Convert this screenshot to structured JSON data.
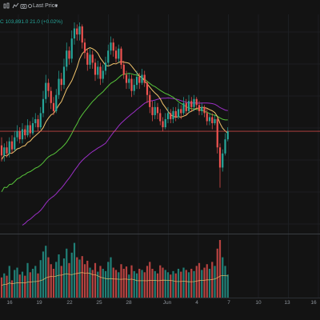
{
  "toolbar": {
    "icons": [
      "chart-type-icon",
      "indicators-icon",
      "camera-icon",
      "settings-icon"
    ],
    "price_source": "Last Price",
    "dropdown_icon": "chevron-down-icon"
  },
  "legend": {
    "ohlc_text": "C 103,891.0  21.0 (+0.02%)",
    "color": "#26a69a"
  },
  "colors": {
    "up": "#26a69a",
    "down": "#ef5350",
    "ma_fast": "#f2c46d",
    "ma_mid": "#57c33a",
    "ma_slow": "#9b2fc6",
    "price_line": "#ef5350",
    "volume_ma": "#f2c46d"
  },
  "chart_data": {
    "type": "candlestick",
    "x_ticks": [
      "16",
      "19",
      "22",
      "25",
      "28",
      "Jun",
      "4",
      "7",
      "10",
      "13",
      "16"
    ],
    "last_price_line": true,
    "candles": [
      [
        0.39,
        0.34,
        0.43,
        0.31
      ],
      [
        0.34,
        0.38,
        0.4,
        0.31
      ],
      [
        0.38,
        0.35,
        0.41,
        0.33
      ],
      [
        0.35,
        0.41,
        0.43,
        0.33
      ],
      [
        0.41,
        0.37,
        0.44,
        0.35
      ],
      [
        0.37,
        0.43,
        0.46,
        0.36
      ],
      [
        0.43,
        0.46,
        0.49,
        0.41
      ],
      [
        0.46,
        0.42,
        0.48,
        0.4
      ],
      [
        0.42,
        0.47,
        0.5,
        0.4
      ],
      [
        0.47,
        0.44,
        0.49,
        0.42
      ],
      [
        0.44,
        0.49,
        0.52,
        0.43
      ],
      [
        0.49,
        0.45,
        0.51,
        0.43
      ],
      [
        0.45,
        0.5,
        0.53,
        0.44
      ],
      [
        0.5,
        0.52,
        0.55,
        0.48
      ],
      [
        0.52,
        0.48,
        0.54,
        0.46
      ],
      [
        0.48,
        0.55,
        0.58,
        0.47
      ],
      [
        0.55,
        0.62,
        0.66,
        0.53
      ],
      [
        0.62,
        0.7,
        0.74,
        0.6
      ],
      [
        0.7,
        0.66,
        0.72,
        0.63
      ],
      [
        0.66,
        0.6,
        0.68,
        0.57
      ],
      [
        0.6,
        0.56,
        0.63,
        0.54
      ],
      [
        0.56,
        0.64,
        0.67,
        0.55
      ],
      [
        0.64,
        0.72,
        0.76,
        0.62
      ],
      [
        0.72,
        0.69,
        0.75,
        0.66
      ],
      [
        0.69,
        0.78,
        0.82,
        0.67
      ],
      [
        0.78,
        0.86,
        0.9,
        0.76
      ],
      [
        0.86,
        0.82,
        0.88,
        0.79
      ],
      [
        0.82,
        0.92,
        0.96,
        0.8
      ],
      [
        0.92,
        0.97,
        1.0,
        0.89
      ],
      [
        0.97,
        0.94,
        0.99,
        0.91
      ],
      [
        0.94,
        0.98,
        1.0,
        0.91
      ],
      [
        0.98,
        0.9,
        0.99,
        0.87
      ],
      [
        0.9,
        0.85,
        0.92,
        0.82
      ],
      [
        0.85,
        0.79,
        0.87,
        0.76
      ],
      [
        0.79,
        0.84,
        0.87,
        0.77
      ],
      [
        0.84,
        0.8,
        0.86,
        0.77
      ],
      [
        0.8,
        0.74,
        0.82,
        0.71
      ],
      [
        0.74,
        0.78,
        0.81,
        0.72
      ],
      [
        0.78,
        0.72,
        0.8,
        0.69
      ],
      [
        0.72,
        0.76,
        0.79,
        0.7
      ],
      [
        0.76,
        0.8,
        0.83,
        0.74
      ],
      [
        0.8,
        0.86,
        0.89,
        0.78
      ],
      [
        0.86,
        0.9,
        0.93,
        0.84
      ],
      [
        0.9,
        0.86,
        0.92,
        0.83
      ],
      [
        0.86,
        0.82,
        0.88,
        0.8
      ],
      [
        0.82,
        0.87,
        0.89,
        0.8
      ],
      [
        0.87,
        0.79,
        0.88,
        0.77
      ],
      [
        0.79,
        0.74,
        0.81,
        0.72
      ],
      [
        0.74,
        0.7,
        0.76,
        0.67
      ],
      [
        0.7,
        0.72,
        0.75,
        0.67
      ],
      [
        0.72,
        0.66,
        0.74,
        0.63
      ],
      [
        0.66,
        0.69,
        0.72,
        0.64
      ],
      [
        0.69,
        0.73,
        0.76,
        0.67
      ],
      [
        0.73,
        0.7,
        0.75,
        0.67
      ],
      [
        0.7,
        0.74,
        0.77,
        0.69
      ],
      [
        0.74,
        0.7,
        0.76,
        0.68
      ],
      [
        0.7,
        0.64,
        0.71,
        0.6
      ],
      [
        0.64,
        0.58,
        0.66,
        0.55
      ],
      [
        0.58,
        0.54,
        0.61,
        0.51
      ],
      [
        0.54,
        0.58,
        0.61,
        0.52
      ],
      [
        0.58,
        0.55,
        0.6,
        0.52
      ],
      [
        0.55,
        0.51,
        0.57,
        0.49
      ],
      [
        0.51,
        0.48,
        0.53,
        0.46
      ],
      [
        0.48,
        0.52,
        0.55,
        0.47
      ],
      [
        0.52,
        0.55,
        0.58,
        0.5
      ],
      [
        0.55,
        0.52,
        0.57,
        0.5
      ],
      [
        0.52,
        0.56,
        0.58,
        0.5
      ],
      [
        0.56,
        0.53,
        0.58,
        0.51
      ],
      [
        0.53,
        0.57,
        0.6,
        0.52
      ],
      [
        0.57,
        0.55,
        0.59,
        0.52
      ],
      [
        0.55,
        0.6,
        0.63,
        0.54
      ],
      [
        0.6,
        0.56,
        0.62,
        0.54
      ],
      [
        0.56,
        0.61,
        0.64,
        0.55
      ],
      [
        0.61,
        0.58,
        0.63,
        0.56
      ],
      [
        0.58,
        0.62,
        0.64,
        0.56
      ],
      [
        0.62,
        0.59,
        0.63,
        0.57
      ],
      [
        0.59,
        0.56,
        0.61,
        0.54
      ],
      [
        0.56,
        0.58,
        0.6,
        0.54
      ],
      [
        0.58,
        0.55,
        0.59,
        0.53
      ],
      [
        0.55,
        0.51,
        0.57,
        0.49
      ],
      [
        0.51,
        0.53,
        0.55,
        0.49
      ],
      [
        0.53,
        0.5,
        0.55,
        0.47
      ],
      [
        0.5,
        0.52,
        0.54,
        0.49
      ],
      [
        0.52,
        0.38,
        0.53,
        0.35
      ],
      [
        0.38,
        0.28,
        0.4,
        0.18
      ],
      [
        0.28,
        0.35,
        0.37,
        0.26
      ],
      [
        0.35,
        0.42,
        0.45,
        0.34
      ],
      [
        0.42,
        0.46,
        0.48,
        0.41
      ]
    ],
    "volumes": [
      0.35,
      0.42,
      0.38,
      0.55,
      0.3,
      0.48,
      0.52,
      0.4,
      0.45,
      0.38,
      0.6,
      0.44,
      0.5,
      0.55,
      0.42,
      0.65,
      0.8,
      0.9,
      0.7,
      0.58,
      0.5,
      0.62,
      0.75,
      0.55,
      0.68,
      0.85,
      0.6,
      0.78,
      0.95,
      0.7,
      0.66,
      0.72,
      0.58,
      0.64,
      0.52,
      0.48,
      0.6,
      0.45,
      0.55,
      0.5,
      0.46,
      0.62,
      0.7,
      0.52,
      0.48,
      0.44,
      0.58,
      0.5,
      0.54,
      0.4,
      0.56,
      0.46,
      0.42,
      0.5,
      0.48,
      0.44,
      0.55,
      0.62,
      0.5,
      0.46,
      0.42,
      0.56,
      0.52,
      0.48,
      0.44,
      0.4,
      0.46,
      0.42,
      0.5,
      0.45,
      0.52,
      0.48,
      0.44,
      0.5,
      0.46,
      0.55,
      0.6,
      0.48,
      0.52,
      0.58,
      0.5,
      0.62,
      0.55,
      0.85,
      1.0,
      0.7,
      0.55,
      0.4
    ]
  }
}
